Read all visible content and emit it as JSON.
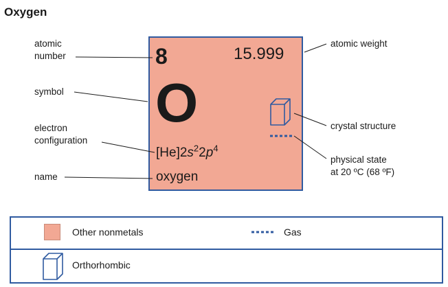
{
  "title": "Oxygen",
  "element": {
    "atomic_number": "8",
    "atomic_weight": "15.999",
    "symbol": "O",
    "econf_core": "[He]2",
    "econf_s": "s",
    "econf_s_exp": "2",
    "econf_mid": "2",
    "econf_p": "p",
    "econf_p_exp": "4",
    "name": "oxygen"
  },
  "labels": {
    "atomic_number_1": "atomic",
    "atomic_number_2": "number",
    "symbol": "symbol",
    "electron_config_1": "electron",
    "electron_config_2": "configuration",
    "name": "name",
    "atomic_weight": "atomic weight",
    "crystal_structure": "crystal structure",
    "physical_state_1": "physical state",
    "physical_state_2": "at 20 ºC (68 ºF)"
  },
  "legend": {
    "category": "Other nonmetals",
    "state": "Gas",
    "crystal": "Orthorhombic"
  },
  "colors": {
    "tile": "#f2a894",
    "accent": "#2f5aa0"
  },
  "icons": [
    "cube-icon",
    "dashed-line-icon"
  ]
}
